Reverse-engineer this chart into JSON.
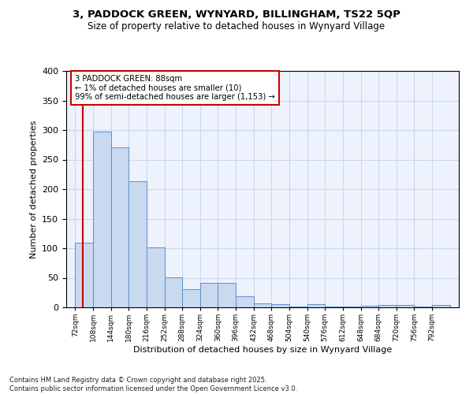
{
  "title1": "3, PADDOCK GREEN, WYNYARD, BILLINGHAM, TS22 5QP",
  "title2": "Size of property relative to detached houses in Wynyard Village",
  "xlabel": "Distribution of detached houses by size in Wynyard Village",
  "ylabel": "Number of detached properties",
  "footer1": "Contains HM Land Registry data © Crown copyright and database right 2025.",
  "footer2": "Contains public sector information licensed under the Open Government Licence v3.0.",
  "annotation_title": "3 PADDOCK GREEN: 88sqm",
  "annotation_line2": "← 1% of detached houses are smaller (10)",
  "annotation_line3": "99% of semi-detached houses are larger (1,153) →",
  "bar_edges": [
    72,
    108,
    144,
    180,
    216,
    252,
    288,
    324,
    360,
    396,
    432,
    468,
    504,
    540,
    576,
    612,
    648,
    684,
    720,
    756,
    792
  ],
  "bar_heights": [
    110,
    298,
    271,
    213,
    101,
    51,
    31,
    41,
    41,
    19,
    7,
    6,
    2,
    6,
    2,
    2,
    3,
    4,
    4,
    1,
    4
  ],
  "bar_color": "#c9d9f0",
  "bar_edge_color": "#5b8fcc",
  "red_line_x": 88,
  "annotation_box_color": "#ffffff",
  "annotation_box_edge": "#cc0000",
  "grid_color": "#c8d8f0",
  "background_color": "#eef2fc",
  "ylim": [
    0,
    400
  ],
  "yticks": [
    0,
    50,
    100,
    150,
    200,
    250,
    300,
    350,
    400
  ],
  "tick_labels": [
    "72sqm",
    "108sqm",
    "144sqm",
    "180sqm",
    "216sqm",
    "252sqm",
    "288sqm",
    "324sqm",
    "360sqm",
    "396sqm",
    "432sqm",
    "468sqm",
    "504sqm",
    "540sqm",
    "576sqm",
    "612sqm",
    "648sqm",
    "684sqm",
    "720sqm",
    "756sqm",
    "792sqm"
  ]
}
